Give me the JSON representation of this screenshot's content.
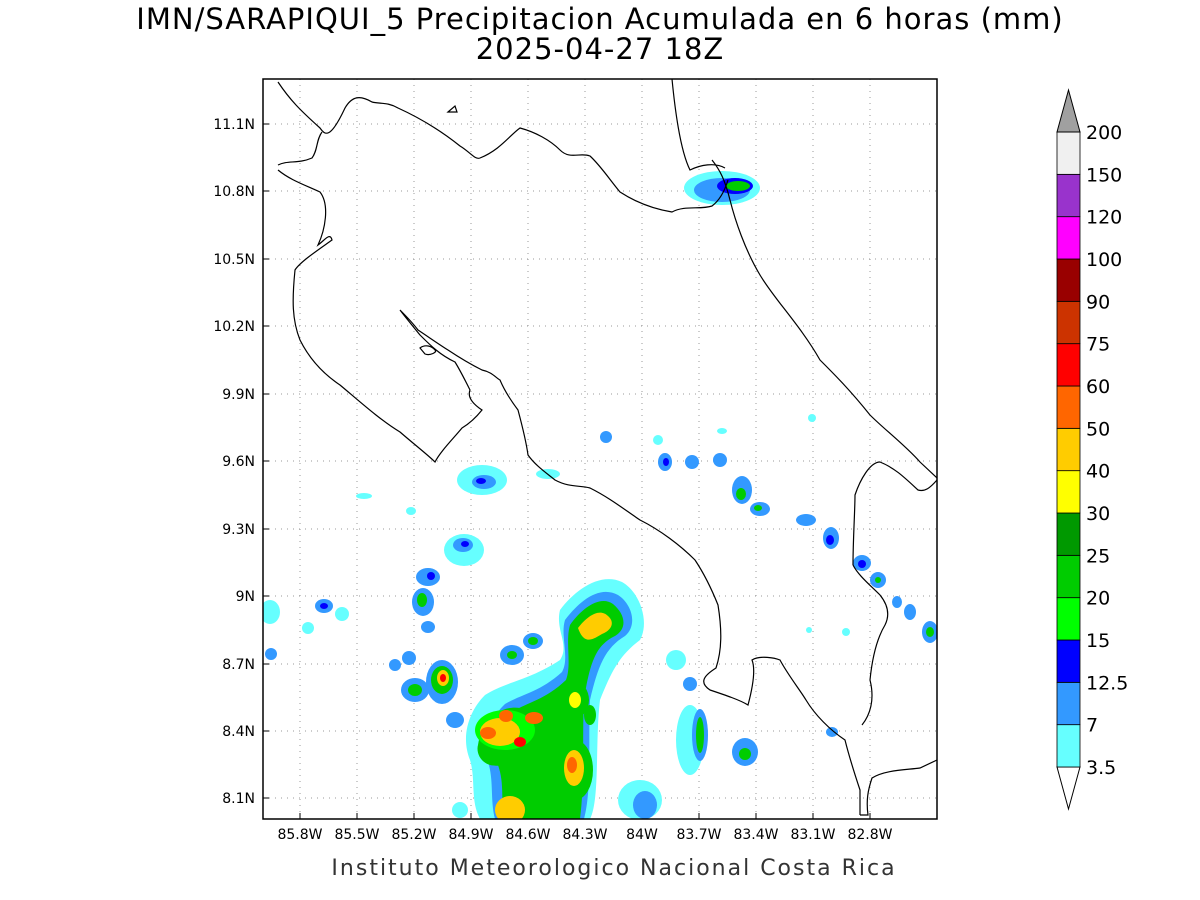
{
  "title": {
    "line1": "IMN/SARAPIQUI_5 Precipitacion Acumulada en 6 horas (mm)",
    "line2": "2025-04-27 18Z"
  },
  "footer": "Instituto Meteorologico Nacional Costa Rica",
  "map": {
    "lon_range": [
      -86.0,
      -83.0
    ],
    "lat_range": [
      8.0,
      11.2
    ],
    "lon_ticks": [
      "85.8W",
      "85.5W",
      "85.2W",
      "84.9W",
      "84.6W",
      "84.3W",
      "84W",
      "83.7W",
      "83.4W",
      "83.1W",
      "82.8W"
    ],
    "lat_ticks": [
      "11.1N",
      "10.8N",
      "10.5N",
      "10.2N",
      "9.9N",
      "9.6N",
      "9.3N",
      "9N",
      "8.7N",
      "8.4N",
      "8.1N"
    ],
    "grid": true
  },
  "legend": {
    "levels": [
      "3.5",
      "7",
      "12.5",
      "15",
      "20",
      "25",
      "30",
      "40",
      "50",
      "60",
      "75",
      "90",
      "100",
      "120",
      "150",
      "200"
    ],
    "colors": {
      "3.5-7": "#66ffff",
      "7-12.5": "#3399ff",
      "12.5-15": "#0000ff",
      "15-20": "#00ff00",
      "20-25": "#00cc00",
      "25-30": "#009900",
      "30-40": "#ffff00",
      "40-50": "#ffcc00",
      "50-60": "#ff6600",
      "60-75": "#ff0000",
      "75-90": "#cc3300",
      "90-100": "#990000",
      "100-120": "#ff00ff",
      "120-150": "#9933cc",
      "150-200": "#f0f0f0",
      ">200": "#a0a0a0"
    }
  }
}
